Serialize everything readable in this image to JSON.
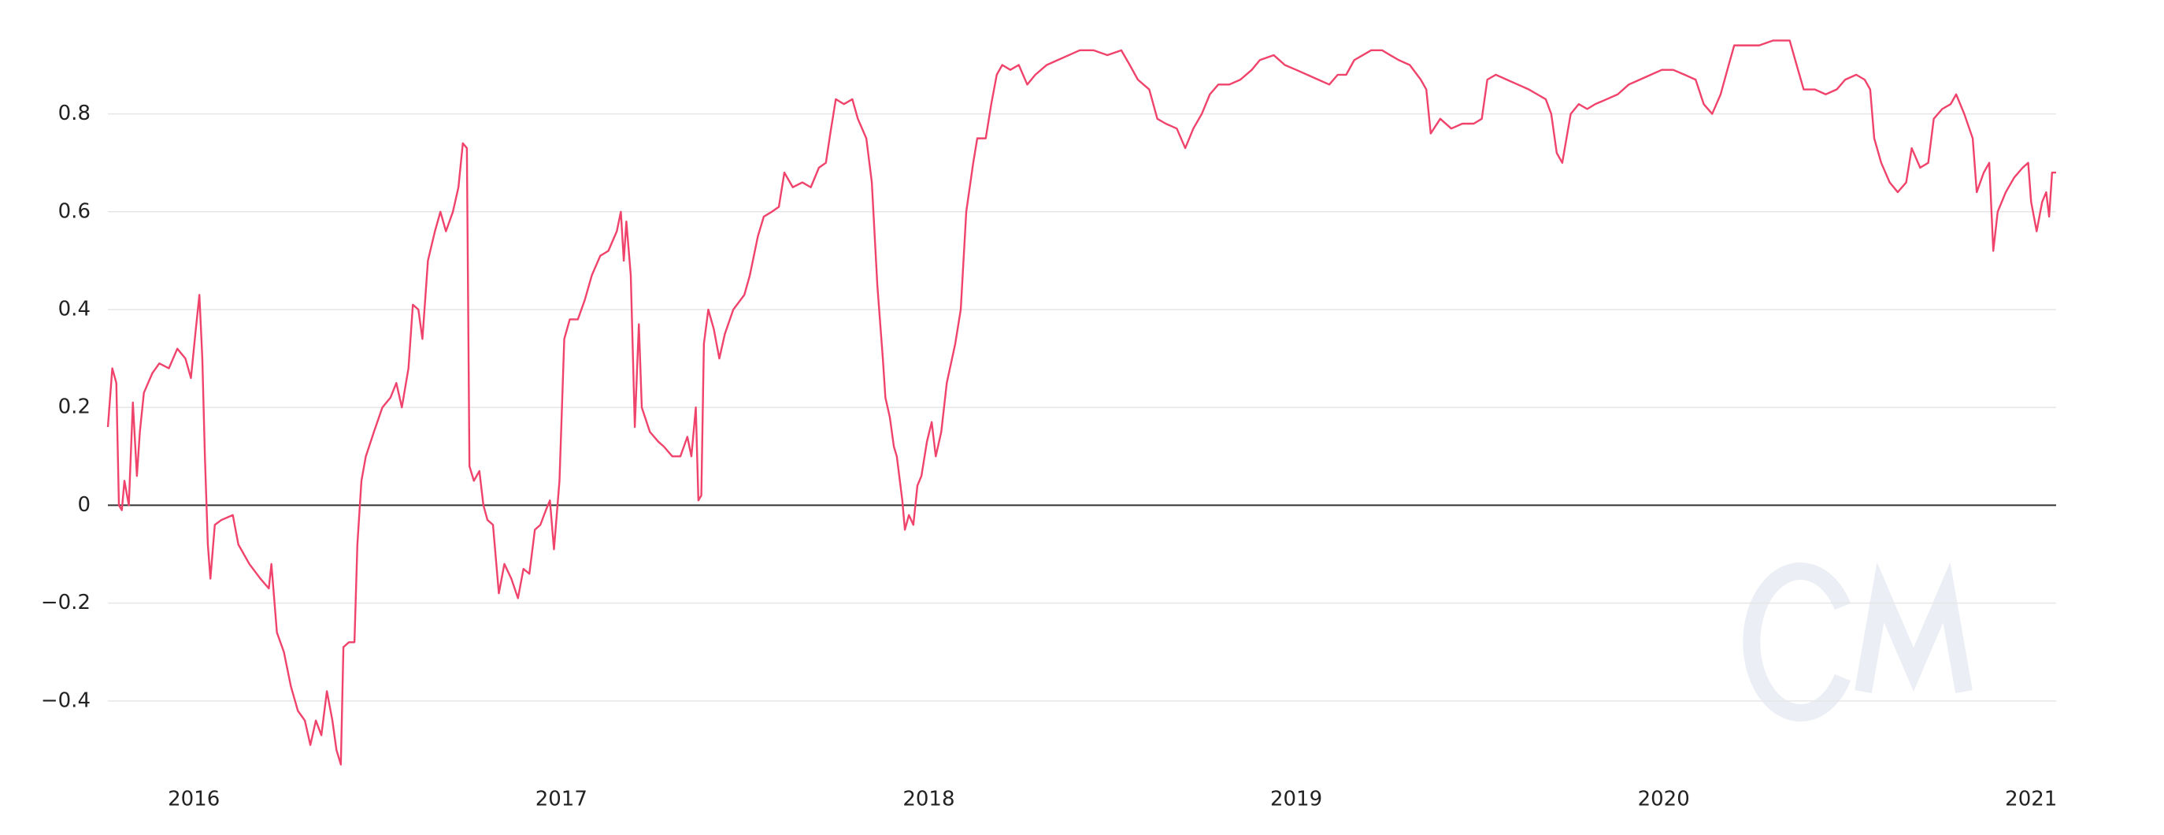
{
  "chart_data": {
    "type": "line",
    "color": "#f0436b",
    "grid": true,
    "xlim": [
      2015.766,
      2021.068
    ],
    "xticks": [
      2016,
      2017,
      2018,
      2019,
      2020,
      2021
    ],
    "ylim": [
      -0.55,
      0.97
    ],
    "yticks": [
      {
        "value": -0.4,
        "label": "−0.4"
      },
      {
        "value": -0.2,
        "label": "−0.2"
      },
      0,
      0.2,
      0.4,
      0.6,
      0.8
    ],
    "x": [
      2015.766,
      2015.778,
      2015.789,
      2015.796,
      2015.804,
      2015.811,
      2015.823,
      2015.834,
      2015.845,
      2015.853,
      2015.864,
      2015.887,
      2015.906,
      2015.932,
      2015.955,
      2015.977,
      2015.992,
      2016.004,
      2016.015,
      2016.023,
      2016.03,
      2016.038,
      2016.045,
      2016.057,
      2016.075,
      2016.106,
      2016.121,
      2016.151,
      2016.181,
      2016.204,
      2016.211,
      2016.226,
      2016.245,
      2016.264,
      2016.283,
      2016.302,
      2016.317,
      2016.332,
      2016.347,
      2016.362,
      2016.377,
      2016.388,
      2016.4,
      2016.407,
      2016.422,
      2016.437,
      2016.445,
      2016.456,
      2016.468,
      2016.49,
      2016.513,
      2016.535,
      2016.551,
      2016.566,
      2016.584,
      2016.596,
      2016.611,
      2016.622,
      2016.637,
      2016.656,
      2016.671,
      2016.686,
      2016.705,
      2016.72,
      2016.732,
      2016.743,
      2016.75,
      2016.762,
      2016.777,
      2016.788,
      2016.799,
      2016.814,
      2016.83,
      2016.845,
      2016.864,
      2016.882,
      2016.897,
      2016.913,
      2016.928,
      2016.943,
      2016.958,
      2016.969,
      2016.98,
      2016.995,
      2017.008,
      2017.023,
      2017.045,
      2017.064,
      2017.083,
      2017.106,
      2017.128,
      2017.151,
      2017.162,
      2017.17,
      2017.177,
      2017.189,
      2017.2,
      2017.211,
      2017.219,
      2017.241,
      2017.264,
      2017.279,
      2017.302,
      2017.324,
      2017.343,
      2017.354,
      2017.366,
      2017.373,
      2017.381,
      2017.388,
      2017.4,
      2017.415,
      2017.43,
      2017.445,
      2017.468,
      2017.498,
      2017.513,
      2017.535,
      2017.551,
      2017.573,
      2017.592,
      2017.607,
      2017.63,
      2017.656,
      2017.679,
      2017.701,
      2017.72,
      2017.732,
      2017.747,
      2017.769,
      2017.792,
      2017.807,
      2017.83,
      2017.845,
      2017.86,
      2017.875,
      2017.882,
      2017.894,
      2017.905,
      2017.913,
      2017.928,
      2017.935,
      2017.946,
      2017.958,
      2017.969,
      2017.98,
      2017.995,
      2018.008,
      2018.019,
      2018.034,
      2018.049,
      2018.072,
      2018.087,
      2018.102,
      2018.121,
      2018.132,
      2018.155,
      2018.17,
      2018.185,
      2018.2,
      2018.222,
      2018.245,
      2018.268,
      2018.29,
      2018.321,
      2018.351,
      2018.381,
      2018.411,
      2018.449,
      2018.486,
      2018.524,
      2018.547,
      2018.569,
      2018.6,
      2018.622,
      2018.645,
      2018.675,
      2018.698,
      2018.72,
      2018.743,
      2018.765,
      2018.788,
      2018.818,
      2018.848,
      2018.879,
      2018.901,
      2018.939,
      2018.969,
      2019.0,
      2019.03,
      2019.06,
      2019.09,
      2019.113,
      2019.136,
      2019.158,
      2019.181,
      2019.204,
      2019.234,
      2019.256,
      2019.279,
      2019.309,
      2019.339,
      2019.354,
      2019.366,
      2019.392,
      2019.422,
      2019.452,
      2019.483,
      2019.505,
      2019.52,
      2019.543,
      2019.573,
      2019.603,
      2019.633,
      2019.656,
      2019.679,
      2019.694,
      2019.709,
      2019.724,
      2019.747,
      2019.769,
      2019.792,
      2019.814,
      2019.845,
      2019.875,
      2019.905,
      2019.935,
      2019.965,
      2019.995,
      2020.026,
      2020.057,
      2020.087,
      2020.109,
      2020.132,
      2020.155,
      2020.177,
      2020.192,
      2020.222,
      2020.26,
      2020.298,
      2020.343,
      2020.358,
      2020.381,
      2020.411,
      2020.441,
      2020.471,
      2020.494,
      2020.524,
      2020.547,
      2020.562,
      2020.573,
      2020.592,
      2020.615,
      2020.637,
      2020.66,
      2020.675,
      2020.698,
      2020.72,
      2020.735,
      2020.758,
      2020.781,
      2020.796,
      2020.818,
      2020.841,
      2020.852,
      2020.871,
      2020.886,
      2020.897,
      2020.909,
      2020.931,
      2020.954,
      2020.977,
      2020.992,
      2021.0,
      2021.015,
      2021.03,
      2021.041,
      2021.049,
      2021.057,
      2021.068
    ],
    "values": [
      0.16,
      0.28,
      0.25,
      0.0,
      -0.01,
      0.05,
      0.0,
      0.21,
      0.06,
      0.15,
      0.23,
      0.27,
      0.29,
      0.28,
      0.32,
      0.3,
      0.26,
      0.35,
      0.43,
      0.3,
      0.1,
      -0.08,
      -0.15,
      -0.04,
      -0.03,
      -0.02,
      -0.08,
      -0.12,
      -0.15,
      -0.17,
      -0.12,
      -0.26,
      -0.3,
      -0.37,
      -0.42,
      -0.44,
      -0.49,
      -0.44,
      -0.47,
      -0.38,
      -0.44,
      -0.5,
      -0.53,
      -0.29,
      -0.28,
      -0.28,
      -0.08,
      0.05,
      0.1,
      0.15,
      0.2,
      0.22,
      0.25,
      0.2,
      0.28,
      0.41,
      0.4,
      0.34,
      0.5,
      0.56,
      0.6,
      0.56,
      0.6,
      0.65,
      0.74,
      0.73,
      0.08,
      0.05,
      0.07,
      0.0,
      -0.03,
      -0.04,
      -0.18,
      -0.12,
      -0.15,
      -0.19,
      -0.13,
      -0.14,
      -0.05,
      -0.04,
      -0.01,
      0.01,
      -0.09,
      0.05,
      0.34,
      0.38,
      0.38,
      0.42,
      0.47,
      0.51,
      0.52,
      0.56,
      0.6,
      0.5,
      0.58,
      0.47,
      0.16,
      0.37,
      0.2,
      0.15,
      0.13,
      0.12,
      0.1,
      0.1,
      0.14,
      0.1,
      0.2,
      0.01,
      0.02,
      0.33,
      0.4,
      0.36,
      0.3,
      0.35,
      0.4,
      0.43,
      0.47,
      0.55,
      0.59,
      0.6,
      0.61,
      0.68,
      0.65,
      0.66,
      0.65,
      0.69,
      0.7,
      0.76,
      0.83,
      0.82,
      0.83,
      0.79,
      0.75,
      0.66,
      0.45,
      0.3,
      0.22,
      0.18,
      0.12,
      0.1,
      0.01,
      -0.05,
      -0.02,
      -0.04,
      0.04,
      0.06,
      0.13,
      0.17,
      0.1,
      0.15,
      0.25,
      0.33,
      0.4,
      0.6,
      0.7,
      0.75,
      0.75,
      0.82,
      0.88,
      0.9,
      0.89,
      0.9,
      0.86,
      0.88,
      0.9,
      0.91,
      0.92,
      0.93,
      0.93,
      0.92,
      0.93,
      0.9,
      0.87,
      0.85,
      0.79,
      0.78,
      0.77,
      0.73,
      0.77,
      0.8,
      0.84,
      0.86,
      0.86,
      0.87,
      0.89,
      0.91,
      0.92,
      0.9,
      0.89,
      0.88,
      0.87,
      0.86,
      0.88,
      0.88,
      0.91,
      0.92,
      0.93,
      0.93,
      0.92,
      0.91,
      0.9,
      0.87,
      0.85,
      0.76,
      0.79,
      0.77,
      0.78,
      0.78,
      0.79,
      0.87,
      0.88,
      0.87,
      0.86,
      0.85,
      0.84,
      0.83,
      0.8,
      0.72,
      0.7,
      0.8,
      0.82,
      0.81,
      0.82,
      0.83,
      0.84,
      0.86,
      0.87,
      0.88,
      0.89,
      0.89,
      0.88,
      0.87,
      0.82,
      0.8,
      0.84,
      0.9,
      0.94,
      0.94,
      0.94,
      0.95,
      0.95,
      0.91,
      0.85,
      0.85,
      0.84,
      0.85,
      0.87,
      0.88,
      0.87,
      0.85,
      0.75,
      0.7,
      0.66,
      0.64,
      0.66,
      0.73,
      0.69,
      0.7,
      0.79,
      0.81,
      0.82,
      0.84,
      0.8,
      0.75,
      0.64,
      0.68,
      0.7,
      0.52,
      0.6,
      0.64,
      0.67,
      0.69,
      0.7,
      0.62,
      0.56,
      0.62,
      0.64,
      0.59,
      0.68,
      0.68
    ]
  }
}
